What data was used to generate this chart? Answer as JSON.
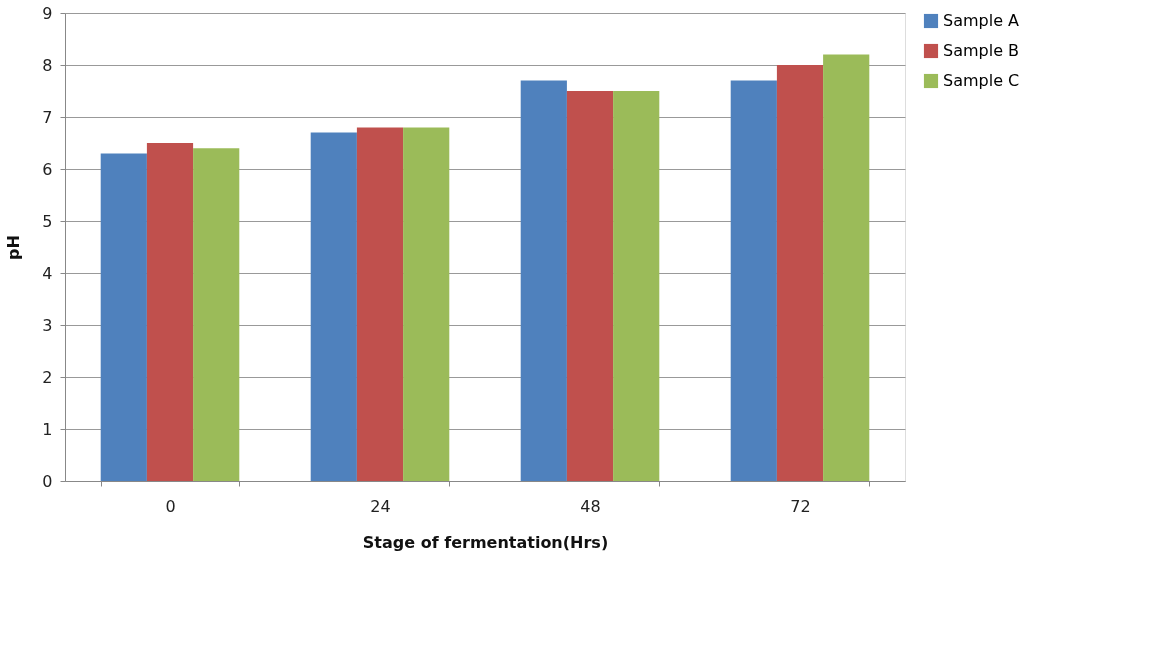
{
  "chart_data": {
    "type": "bar",
    "xlabel": "Stage  of fermentation(Hrs)",
    "ylabel": "pH",
    "categories": [
      "0",
      "24",
      "48",
      "72"
    ],
    "series": [
      {
        "name": "Sample A",
        "color": "#4f81bd",
        "values": [
          6.3,
          6.7,
          7.7,
          7.7
        ]
      },
      {
        "name": "Sample B",
        "color": "#c0504d",
        "values": [
          6.5,
          6.8,
          7.5,
          8.0
        ]
      },
      {
        "name": "Sample C",
        "color": "#9bbb59",
        "values": [
          6.4,
          6.8,
          7.5,
          8.2
        ]
      }
    ],
    "ylim": [
      0,
      9
    ],
    "yticks": [
      0,
      1,
      2,
      3,
      4,
      5,
      6,
      7,
      8,
      9
    ],
    "grid": "y",
    "legend": "right"
  }
}
